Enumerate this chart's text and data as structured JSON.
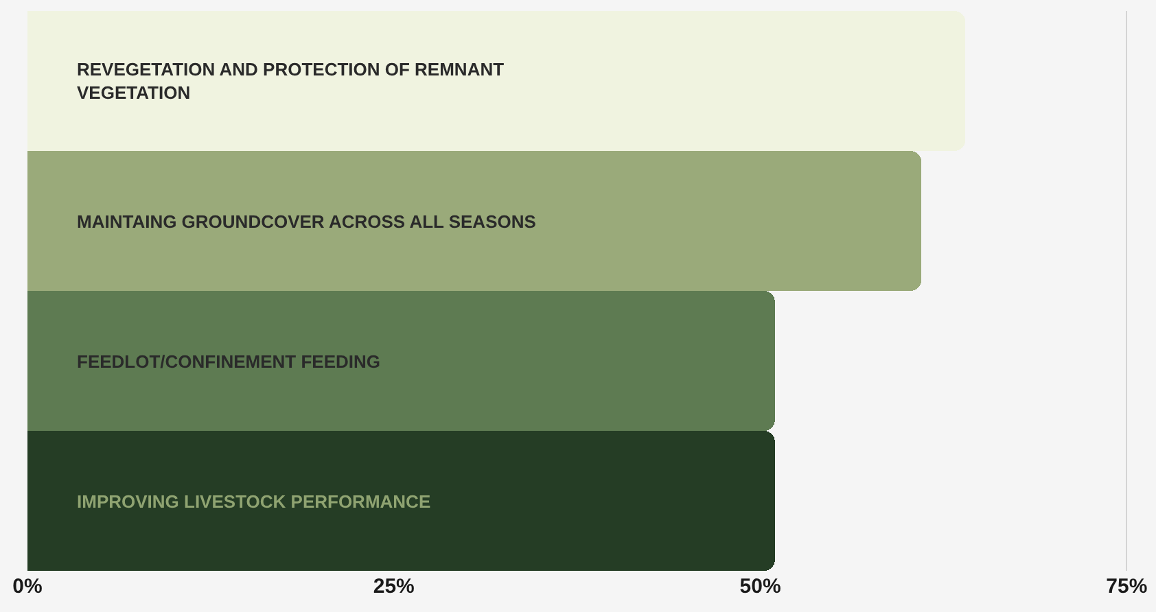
{
  "chart_data": {
    "type": "bar",
    "orientation": "horizontal",
    "categories": [
      "REVEGETATION AND PROTECTION OF REMNANT VEGETATION",
      "MAINTAING GROUNDCOVER ACROSS ALL SEASONS",
      "FEEDLOT/CONFINEMENT FEEDING",
      "IMPROVING LIVESTOCK PERFORMANCE"
    ],
    "values": [
      64,
      61,
      51,
      51
    ],
    "colors": [
      "#f0f3e0",
      "#9aaa7a",
      "#5e7b52",
      "#253d25"
    ],
    "xlim": [
      0,
      77
    ],
    "xticks": [
      {
        "value": 0,
        "label": "0%"
      },
      {
        "value": 25,
        "label": "25%"
      },
      {
        "value": 50,
        "label": "50%"
      },
      {
        "value": 75,
        "label": "75%"
      }
    ],
    "grid": "x"
  }
}
